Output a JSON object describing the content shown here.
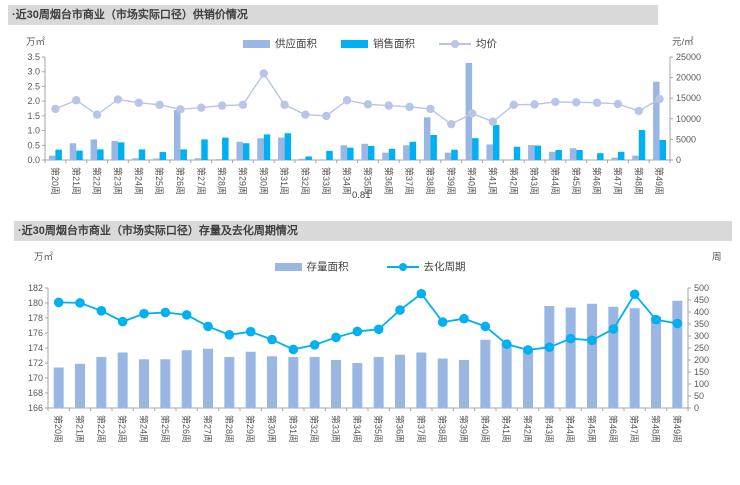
{
  "page": {
    "bg": "#FFFFFF"
  },
  "panels": [
    {
      "title": "·近30周烟台市商业（市场实际口径）供销价情况",
      "unit_left": "万㎡",
      "unit_right": "元/㎡"
    },
    {
      "title": "·近30周烟台市商业（市场实际口径）存量及去化周期情况",
      "unit_left": "万㎡",
      "unit_right": "周"
    }
  ],
  "annotations": {
    "stray_label": "0.81"
  },
  "colors": {
    "light_bar": "#9AB7E4",
    "bright_blue": "#00B0F0",
    "price_line": "#B7C6E6",
    "title_bg": "#D9D9D9",
    "title_text": "#3F3F3F",
    "axis_text": "#595959",
    "axis_line": "#A6A6A6"
  },
  "chart_data": [
    {
      "type": "bar",
      "subtype": "bar+line combo, dual axis",
      "title": "近30周烟台市商业（市场实际口径）供销价情况",
      "categories": [
        "第20周",
        "第21周",
        "第22周",
        "第23周",
        "第24周",
        "第25周",
        "第26周",
        "第27周",
        "第28周",
        "第29周",
        "第30周",
        "第31周",
        "第32周",
        "第33周",
        "第34周",
        "第35周",
        "第36周",
        "第37周",
        "第38周",
        "第39周",
        "第40周",
        "第41周",
        "第42周",
        "第43周",
        "第44周",
        "第45周",
        "第46周",
        "第47周",
        "第48周",
        "第49周"
      ],
      "series": [
        {
          "key": "supply-area",
          "name": "供应面积",
          "type": "bar",
          "axis": "left",
          "color": "#9AB7E4",
          "values": [
            0.15,
            0.57,
            0.7,
            0.65,
            0.06,
            0.05,
            1.7,
            0.06,
            0.03,
            0.62,
            0.74,
            0.76,
            0.04,
            0,
            0.5,
            0.55,
            0.25,
            0.5,
            1.45,
            0.25,
            3.3,
            0.53,
            0,
            0.51,
            0.28,
            0.4,
            0,
            0.08,
            0.15,
            2.66
          ]
        },
        {
          "key": "sales-area",
          "name": "销售面积",
          "type": "bar",
          "axis": "left",
          "color": "#00B0F0",
          "values": [
            0.35,
            0.32,
            0.36,
            0.6,
            0.36,
            0.27,
            0.36,
            0.7,
            0.76,
            0.57,
            0.87,
            0.91,
            0.12,
            0.31,
            0.42,
            0.48,
            0.38,
            0.62,
            0.85,
            0.35,
            0.74,
            1.19,
            0.45,
            0.49,
            0.34,
            0.34,
            0.23,
            0.28,
            1.02,
            0.68
          ]
        },
        {
          "key": "avg-price",
          "name": "均价",
          "type": "line",
          "axis": "right",
          "color": "#B7C6E6",
          "values": [
            12400,
            14500,
            11000,
            14700,
            13900,
            13400,
            12300,
            12700,
            13200,
            13400,
            21000,
            13400,
            11000,
            10700,
            14500,
            13500,
            13200,
            12900,
            12400,
            8700,
            11300,
            9300,
            13400,
            13500,
            14100,
            14000,
            13900,
            13600,
            11900,
            14800
          ]
        }
      ],
      "left_axis": {
        "label": "万㎡",
        "min": 0,
        "max": 3.5,
        "ticks": [
          "0.0",
          "0.5",
          "1.0",
          "1.5",
          "2.0",
          "2.5",
          "3.0",
          "3.5"
        ]
      },
      "right_axis": {
        "label": "元/㎡",
        "min": 0,
        "max": 25000,
        "ticks": [
          "0",
          "5000",
          "10000",
          "15000",
          "20000",
          "25000"
        ]
      },
      "grid": false,
      "legend_position": "top-center"
    },
    {
      "type": "bar",
      "subtype": "bar+line combo, dual axis",
      "title": "近30周烟台市商业（市场实际口径）存量及去化周期情况",
      "categories": [
        "第20周",
        "第21周",
        "第22周",
        "第23周",
        "第24周",
        "第25周",
        "第26周",
        "第27周",
        "第28周",
        "第29周",
        "第30周",
        "第31周",
        "第32周",
        "第33周",
        "第34周",
        "第35周",
        "第36周",
        "第37周",
        "第38周",
        "第39周",
        "第40周",
        "第41周",
        "第42周",
        "第43周",
        "第44周",
        "第45周",
        "第46周",
        "第47周",
        "第48周",
        "第49周"
      ],
      "series": [
        {
          "key": "inventory-area",
          "name": "存量面积",
          "type": "bar",
          "axis": "left",
          "color": "#9AB7E4",
          "values": [
            171.4,
            171.9,
            172.8,
            173.4,
            172.5,
            172.5,
            173.7,
            173.9,
            172.8,
            173.5,
            172.9,
            172.8,
            172.8,
            172.4,
            172.0,
            172.8,
            173.1,
            173.4,
            172.6,
            172.4,
            175.1,
            174.7,
            174.0,
            179.6,
            179.4,
            179.9,
            179.5,
            179.3,
            178.2,
            180.3
          ]
        },
        {
          "key": "absorption-period",
          "name": "去化周期",
          "type": "line",
          "axis": "right",
          "color": "#00B0F0",
          "values": [
            440,
            438,
            405,
            360,
            393,
            398,
            388,
            340,
            305,
            318,
            285,
            244,
            263,
            294,
            319,
            328,
            408,
            476,
            358,
            372,
            340,
            266,
            242,
            253,
            289,
            282,
            329,
            474,
            368,
            352
          ]
        }
      ],
      "left_axis": {
        "label": "万㎡",
        "min": 166,
        "max": 182,
        "ticks": [
          "166",
          "168",
          "170",
          "172",
          "174",
          "176",
          "178",
          "180",
          "182"
        ]
      },
      "right_axis": {
        "label": "周",
        "min": 0,
        "max": 500,
        "ticks": [
          "0",
          "50",
          "100",
          "150",
          "200",
          "250",
          "300",
          "350",
          "400",
          "450",
          "500"
        ]
      },
      "grid": false,
      "legend_position": "top-center"
    }
  ]
}
